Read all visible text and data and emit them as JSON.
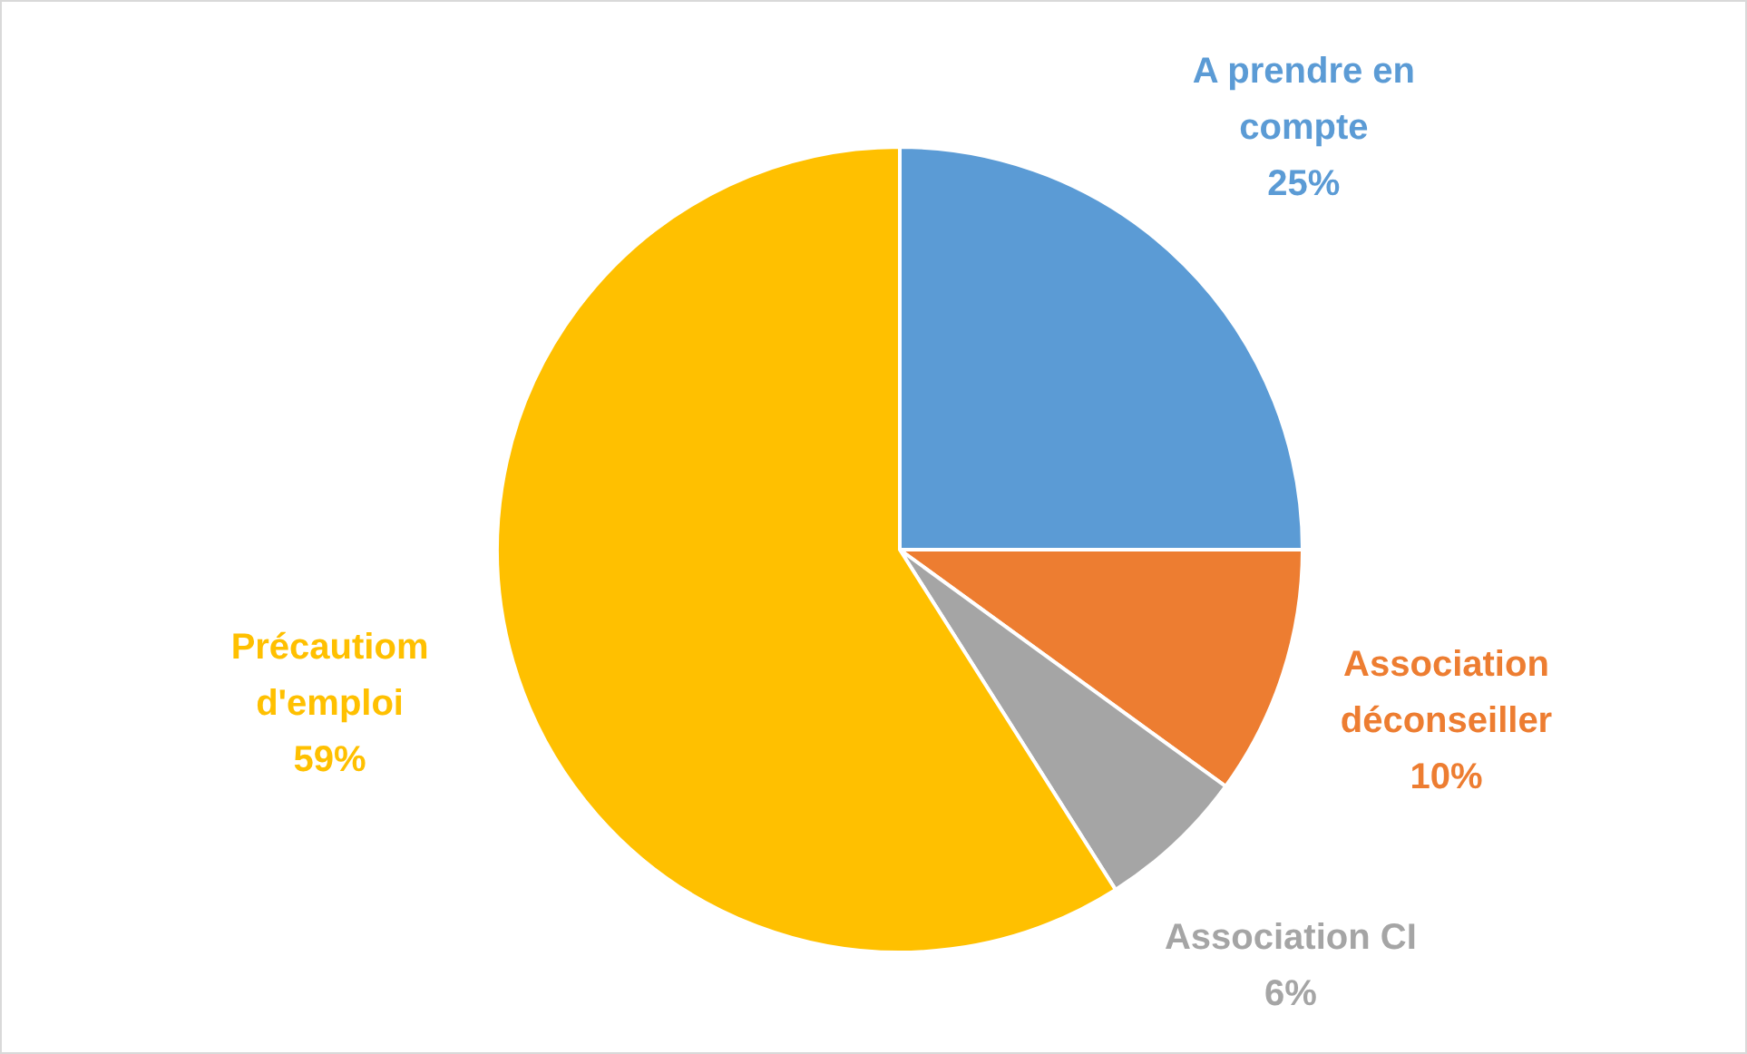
{
  "chart_data": {
    "type": "pie",
    "categories": [
      "A prendre en compte",
      "Association déconseiller",
      "Association CI",
      "Précautiom d'emploi"
    ],
    "values": [
      25,
      10,
      6,
      59
    ],
    "colors": [
      "#5b9bd5",
      "#ed7d31",
      "#a5a5a5",
      "#ffc000"
    ],
    "value_labels": [
      "25%",
      "10%",
      "6%",
      "59%"
    ],
    "legend": false
  }
}
